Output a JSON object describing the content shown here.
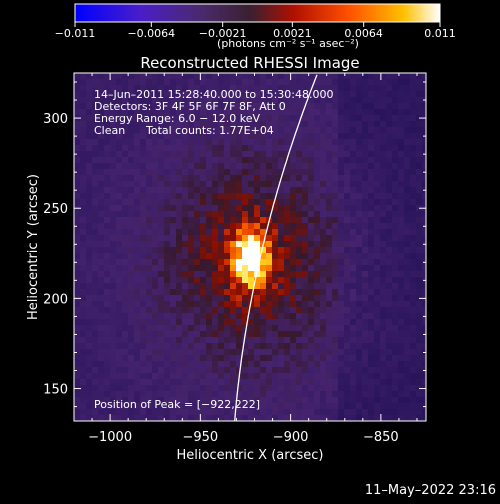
{
  "chart_data": {
    "type": "heatmap",
    "title": "Reconstructed RHESSI Image",
    "xlabel": "Heliocentric X (arcsec)",
    "ylabel": "Heliocentric Y (arcsec)",
    "xlim": [
      -1020,
      -825
    ],
    "ylim": [
      132,
      325
    ],
    "xticks": [
      -1000,
      -950,
      -900,
      -850
    ],
    "xtick_labels": [
      "−1000",
      "−950",
      "−900",
      "−850"
    ],
    "yticks": [
      150,
      200,
      250,
      300
    ],
    "ytick_labels": [
      "150",
      "200",
      "250",
      "300"
    ],
    "colorbar": {
      "range": [
        -0.011,
        0.011
      ],
      "ticks": [
        -0.011,
        -0.0064,
        -0.0021,
        0.0021,
        0.0064,
        0.011
      ],
      "tick_labels": [
        "−0.011",
        "−0.0064",
        "−0.0021",
        "0.0021",
        "0.0064",
        "0.011"
      ],
      "colormap": "blue-purple-red-orange-yellow-white",
      "unit_label": "(photons cm⁻² s⁻¹ asec⁻²)"
    },
    "annotations": {
      "time_range": "14–Jun–2011 15:28:40.000 to 15:30:48.000",
      "detectors": "Detectors: 3F 4F 5F 6F 7F 8F, Att 0",
      "energy": "Energy Range: 6.0 − 12.0 keV",
      "method": "Clean",
      "counts": "Total counts: 1.77E+04",
      "peak": "Position of Peak = [−922,222]"
    },
    "peak": {
      "x": -922,
      "y": 222
    },
    "limb": "solar limb arc drawn as white line",
    "footer_date": "11–May–2022 23:16"
  }
}
